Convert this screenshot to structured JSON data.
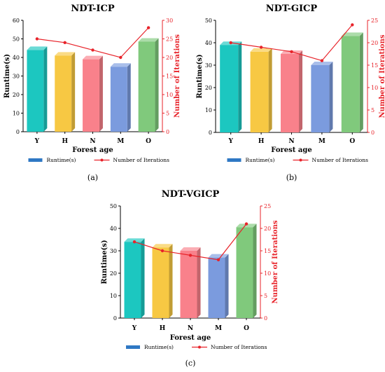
{
  "figure": {
    "panels": [
      {
        "label": "(a)"
      },
      {
        "label": "(b)"
      },
      {
        "label": "(c)"
      }
    ]
  },
  "chart_data": [
    {
      "type": "bar",
      "title": "NDT-ICP",
      "xlabel": "Forest age",
      "ylabel": "Runtime(s)",
      "y2label": "Number of Iterations",
      "categories": [
        "Y",
        "H",
        "N",
        "M",
        "O"
      ],
      "ylim": [
        0,
        60
      ],
      "yticks": [
        0,
        10,
        20,
        30,
        40,
        50,
        60
      ],
      "y2lim": [
        0,
        30
      ],
      "y2ticks": [
        0,
        5,
        10,
        15,
        20,
        25,
        30
      ],
      "series": [
        {
          "name": "Runtime(s)",
          "type": "bar",
          "axis": "left",
          "values": [
            44,
            41,
            39,
            35,
            48.5
          ]
        },
        {
          "name": "Number of Iterations",
          "type": "line",
          "axis": "right",
          "values": [
            25,
            24,
            22,
            20,
            28
          ]
        }
      ],
      "legend": "bottom",
      "bar_colors": [
        "#1cc7c0",
        "#f7c843",
        "#f9818b",
        "#7b9bde",
        "#80c97c"
      ],
      "line_color": "#e8232a",
      "legend_bar_color": "#2f78c4"
    },
    {
      "type": "bar",
      "title": "NDT-GICP",
      "xlabel": "Forest age",
      "ylabel": "Runtime(s)",
      "y2label": "Number of Iterations",
      "categories": [
        "Y",
        "H",
        "N",
        "M",
        "O"
      ],
      "ylim": [
        0,
        50
      ],
      "yticks": [
        0,
        10,
        20,
        30,
        40,
        50
      ],
      "y2lim": [
        0,
        25
      ],
      "y2ticks": [
        0,
        5,
        10,
        15,
        20,
        25
      ],
      "series": [
        {
          "name": "Runtime(s)",
          "type": "bar",
          "axis": "left",
          "values": [
            39,
            36,
            35,
            30,
            43
          ]
        },
        {
          "name": "Number of Iterations",
          "type": "line",
          "axis": "right",
          "values": [
            20,
            19,
            18,
            16,
            24
          ]
        }
      ],
      "legend": "bottom",
      "bar_colors": [
        "#1cc7c0",
        "#f7c843",
        "#f9818b",
        "#7b9bde",
        "#80c97c"
      ],
      "line_color": "#e8232a",
      "legend_bar_color": "#2f78c4"
    },
    {
      "type": "bar",
      "title": "NDT-VGICP",
      "xlabel": "Forest age",
      "ylabel": "Runtime(s)",
      "y2label": "Number of Iterations",
      "categories": [
        "Y",
        "H",
        "N",
        "M",
        "O"
      ],
      "ylim": [
        0,
        50
      ],
      "yticks": [
        0,
        10,
        20,
        30,
        40,
        50
      ],
      "y2lim": [
        0,
        25
      ],
      "y2ticks": [
        0,
        5,
        10,
        15,
        20,
        25
      ],
      "series": [
        {
          "name": "Runtime(s)",
          "type": "bar",
          "axis": "left",
          "values": [
            34,
            31.5,
            30,
            27,
            40.5
          ]
        },
        {
          "name": "Number of Iterations",
          "type": "line",
          "axis": "right",
          "values": [
            17,
            15,
            14,
            13,
            21
          ]
        }
      ],
      "legend": "bottom",
      "bar_colors": [
        "#1cc7c0",
        "#f7c843",
        "#f9818b",
        "#7b9bde",
        "#80c97c"
      ],
      "line_color": "#e8232a",
      "legend_bar_color": "#2f78c4"
    }
  ]
}
